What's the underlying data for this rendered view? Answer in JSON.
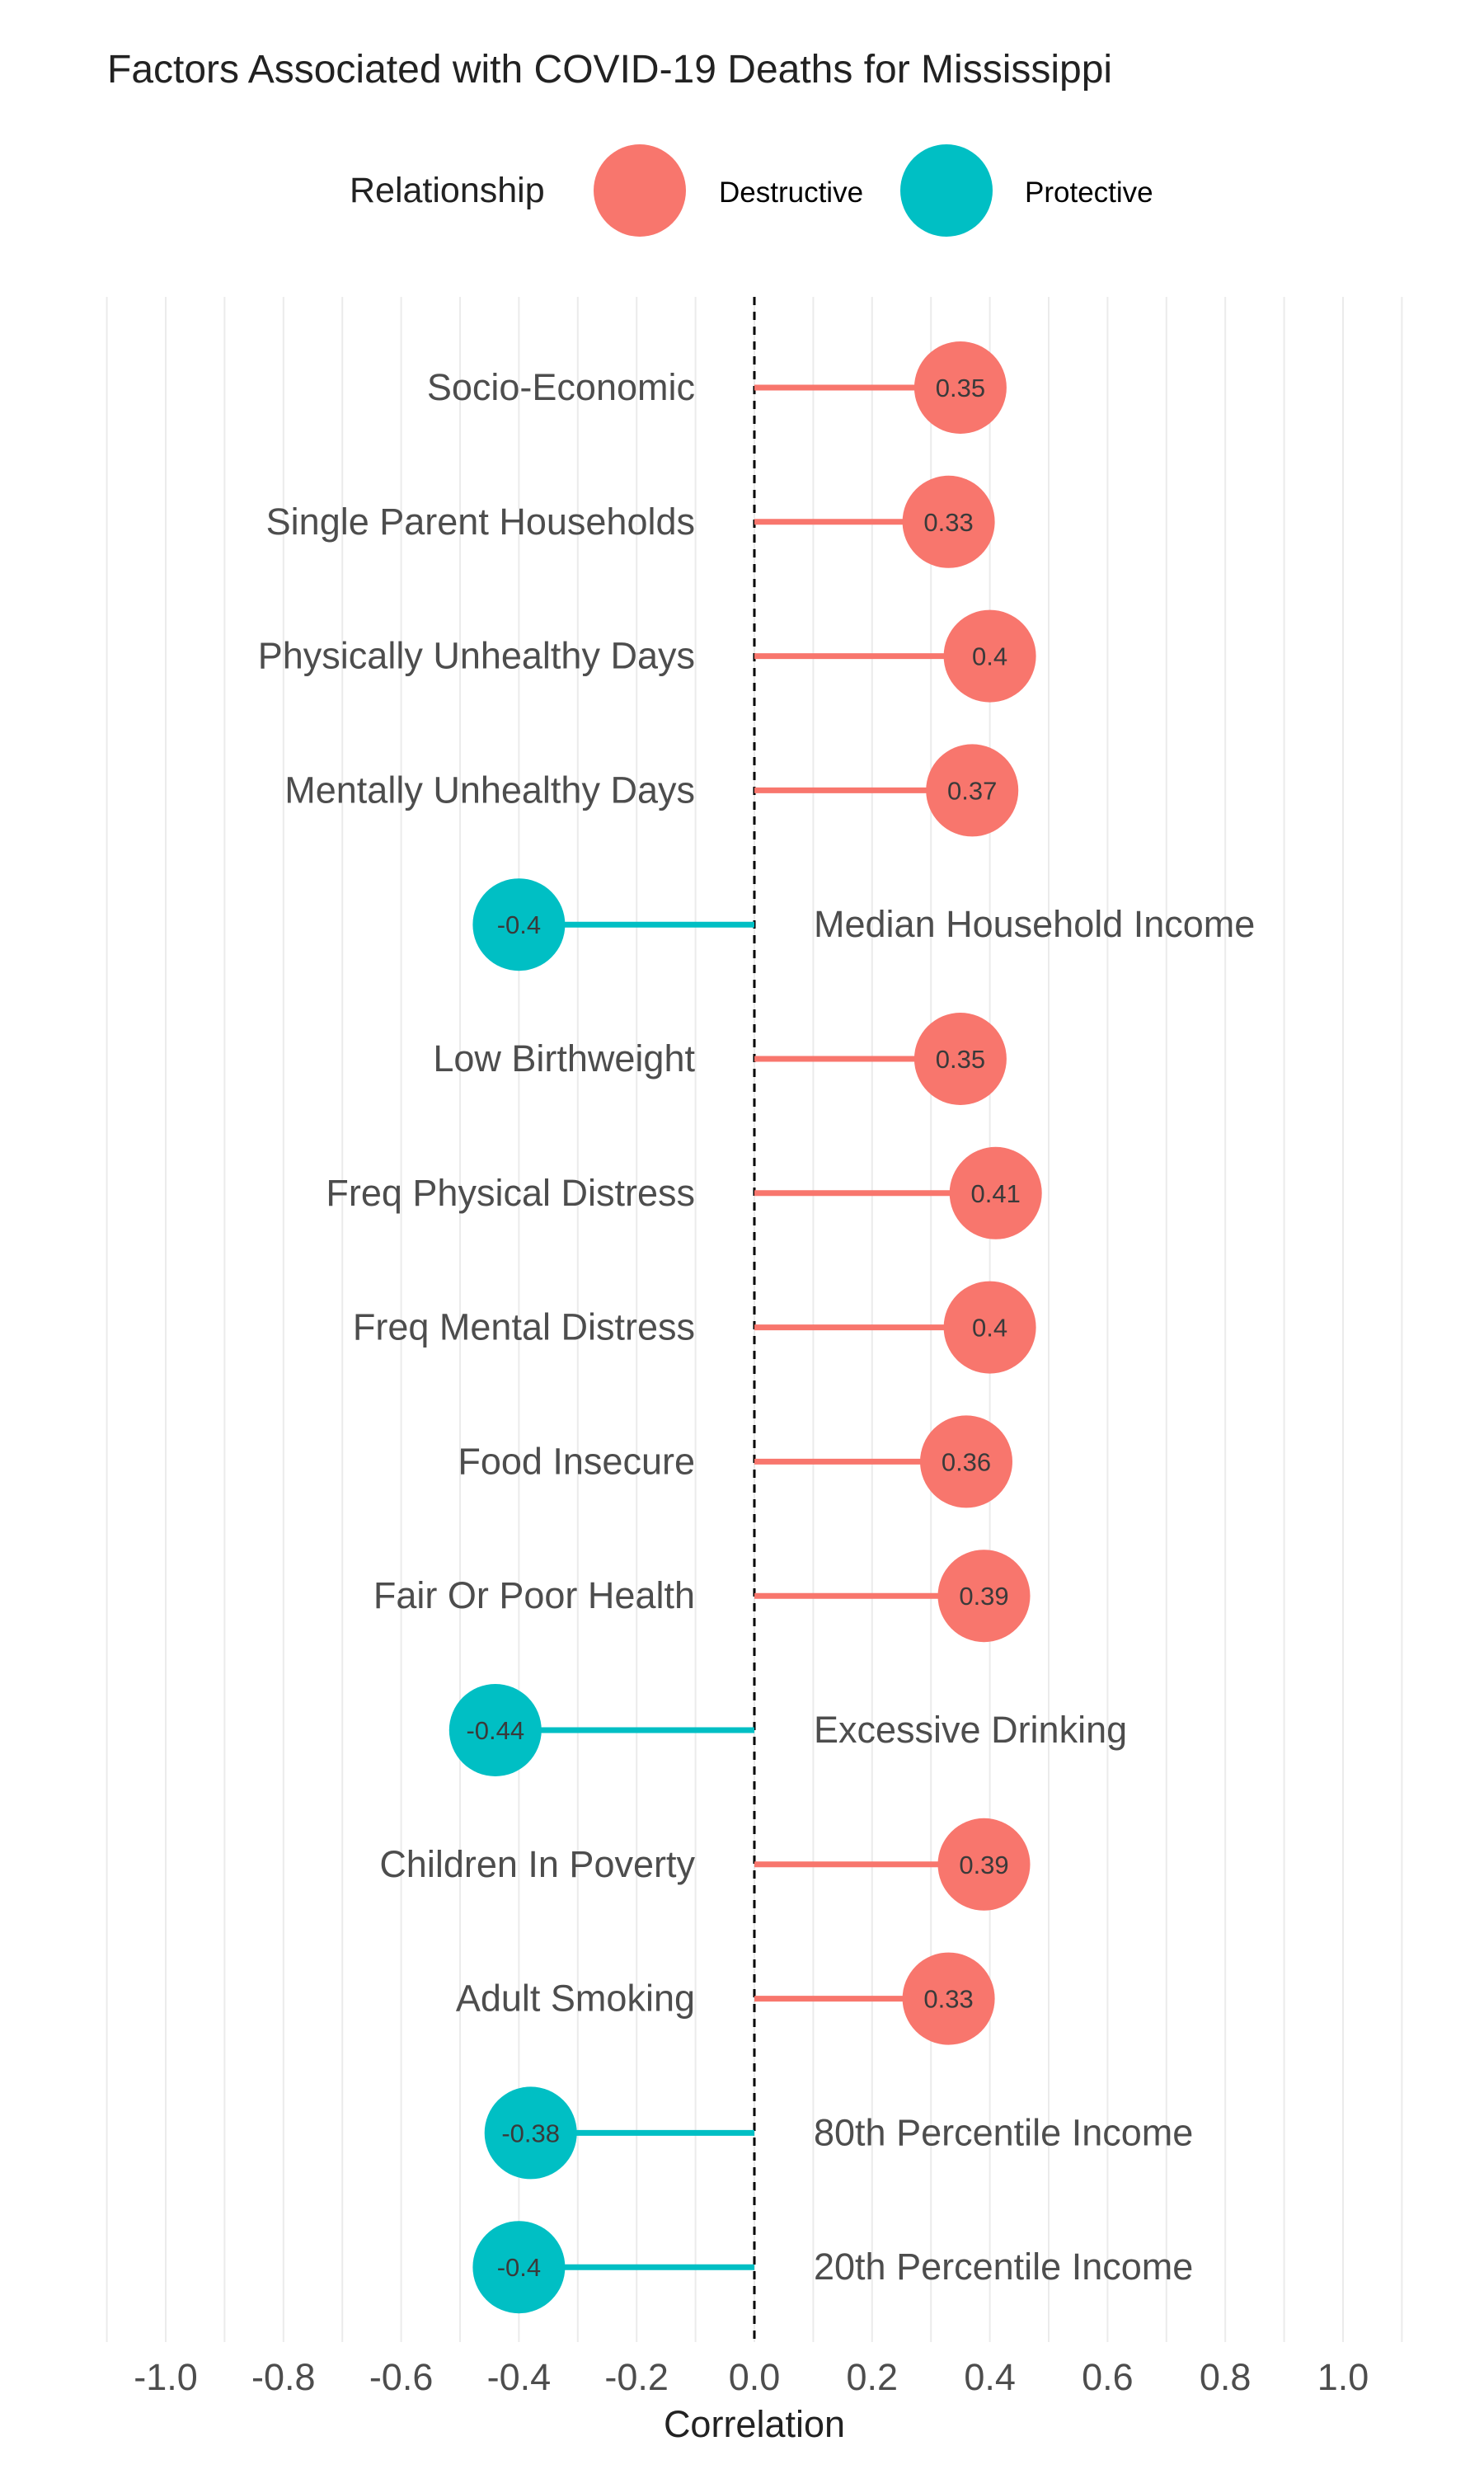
{
  "chart_data": {
    "type": "lollipop",
    "title": "Factors Associated with COVID-19 Deaths for Mississippi",
    "xlabel": "Correlation",
    "ylabel": "",
    "xlim": [
      -1.1,
      1.1
    ],
    "x_ticks": [
      -1.0,
      -0.8,
      -0.6,
      -0.4,
      -0.2,
      0.0,
      0.2,
      0.4,
      0.6,
      0.8,
      1.0
    ],
    "x_tick_labels": [
      "-1.0",
      "-0.8",
      "-0.6",
      "-0.4",
      "-0.2",
      "0.0",
      "0.2",
      "0.4",
      "0.6",
      "0.8",
      "1.0"
    ],
    "grid": true,
    "zero_reference_line": "dashed",
    "legend": {
      "title": "Relationship",
      "placement": "top",
      "entries": [
        {
          "label": "Destructive",
          "color": "#F8766D"
        },
        {
          "label": "Protective",
          "color": "#00BFC4"
        }
      ]
    },
    "categories": [
      "Socio-Economic",
      "Single Parent Households",
      "Physically Unhealthy Days",
      "Mentally Unhealthy Days",
      "Median Household Income",
      "Low Birthweight",
      "Freq Physical Distress",
      "Freq Mental Distress",
      "Food Insecure",
      "Fair Or Poor Health",
      "Excessive Drinking",
      "Children In Poverty",
      "Adult Smoking",
      "80th Percentile Income",
      "20th Percentile Income"
    ],
    "values": [
      0.35,
      0.33,
      0.4,
      0.37,
      -0.4,
      0.35,
      0.41,
      0.4,
      0.36,
      0.39,
      -0.44,
      0.39,
      0.33,
      -0.38,
      -0.4
    ],
    "value_labels": [
      "0.35",
      "0.33",
      "0.4",
      "0.37",
      "-0.4",
      "0.35",
      "0.41",
      "0.4",
      "0.36",
      "0.39",
      "-0.44",
      "0.39",
      "0.33",
      "-0.38",
      "-0.4"
    ],
    "relationship": [
      "Destructive",
      "Destructive",
      "Destructive",
      "Destructive",
      "Protective",
      "Destructive",
      "Destructive",
      "Destructive",
      "Destructive",
      "Destructive",
      "Protective",
      "Destructive",
      "Destructive",
      "Protective",
      "Protective"
    ]
  }
}
